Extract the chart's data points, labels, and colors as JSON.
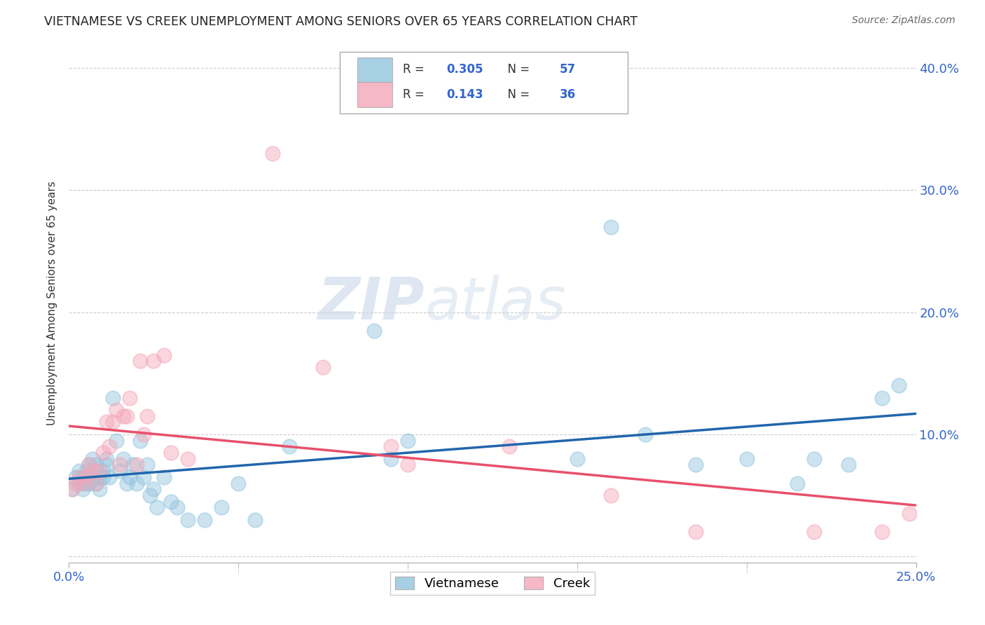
{
  "title": "VIETNAMESE VS CREEK UNEMPLOYMENT AMONG SENIORS OVER 65 YEARS CORRELATION CHART",
  "source": "Source: ZipAtlas.com",
  "ylabel": "Unemployment Among Seniors over 65 years",
  "xlim": [
    0.0,
    0.25
  ],
  "ylim": [
    -0.005,
    0.42
  ],
  "xticks": [
    0.0,
    0.05,
    0.1,
    0.15,
    0.2,
    0.25
  ],
  "xtick_labels": [
    "0.0%",
    "",
    "",
    "",
    "",
    "25.0%"
  ],
  "yticks": [
    0.0,
    0.1,
    0.2,
    0.3,
    0.4
  ],
  "ytick_labels_right": [
    "",
    "10.0%",
    "20.0%",
    "30.0%",
    "40.0%"
  ],
  "legend_blue_r": "0.305",
  "legend_blue_n": "57",
  "legend_pink_r": "0.143",
  "legend_pink_n": "36",
  "blue_color": "#92c5de",
  "pink_color": "#f4a6b8",
  "line_blue": "#2166ac",
  "line_pink": "#e8506a",
  "watermark_zip": "ZIP",
  "watermark_atlas": "atlas",
  "vietnamese_x": [
    0.001,
    0.002,
    0.003,
    0.003,
    0.004,
    0.004,
    0.005,
    0.005,
    0.006,
    0.006,
    0.007,
    0.007,
    0.008,
    0.008,
    0.009,
    0.009,
    0.01,
    0.01,
    0.011,
    0.011,
    0.012,
    0.013,
    0.014,
    0.015,
    0.016,
    0.017,
    0.018,
    0.019,
    0.02,
    0.021,
    0.022,
    0.023,
    0.024,
    0.025,
    0.026,
    0.028,
    0.03,
    0.032,
    0.035,
    0.04,
    0.045,
    0.05,
    0.055,
    0.065,
    0.09,
    0.095,
    0.1,
    0.15,
    0.16,
    0.17,
    0.185,
    0.2,
    0.215,
    0.22,
    0.23,
    0.24,
    0.245
  ],
  "vietnamese_y": [
    0.055,
    0.065,
    0.06,
    0.07,
    0.055,
    0.065,
    0.06,
    0.07,
    0.06,
    0.075,
    0.065,
    0.08,
    0.06,
    0.075,
    0.065,
    0.055,
    0.07,
    0.065,
    0.08,
    0.075,
    0.065,
    0.13,
    0.095,
    0.07,
    0.08,
    0.06,
    0.065,
    0.075,
    0.06,
    0.095,
    0.065,
    0.075,
    0.05,
    0.055,
    0.04,
    0.065,
    0.045,
    0.04,
    0.03,
    0.03,
    0.04,
    0.06,
    0.03,
    0.09,
    0.185,
    0.08,
    0.095,
    0.08,
    0.27,
    0.1,
    0.075,
    0.08,
    0.06,
    0.08,
    0.075,
    0.13,
    0.14
  ],
  "creek_x": [
    0.001,
    0.002,
    0.003,
    0.004,
    0.005,
    0.006,
    0.007,
    0.008,
    0.009,
    0.01,
    0.011,
    0.012,
    0.013,
    0.014,
    0.015,
    0.016,
    0.017,
    0.018,
    0.02,
    0.021,
    0.022,
    0.023,
    0.025,
    0.028,
    0.03,
    0.035,
    0.06,
    0.075,
    0.095,
    0.1,
    0.13,
    0.16,
    0.185,
    0.22,
    0.24,
    0.248
  ],
  "creek_y": [
    0.055,
    0.06,
    0.065,
    0.06,
    0.065,
    0.075,
    0.07,
    0.06,
    0.07,
    0.085,
    0.11,
    0.09,
    0.11,
    0.12,
    0.075,
    0.115,
    0.115,
    0.13,
    0.075,
    0.16,
    0.1,
    0.115,
    0.16,
    0.165,
    0.085,
    0.08,
    0.33,
    0.155,
    0.09,
    0.075,
    0.09,
    0.05,
    0.02,
    0.02,
    0.02,
    0.035
  ]
}
